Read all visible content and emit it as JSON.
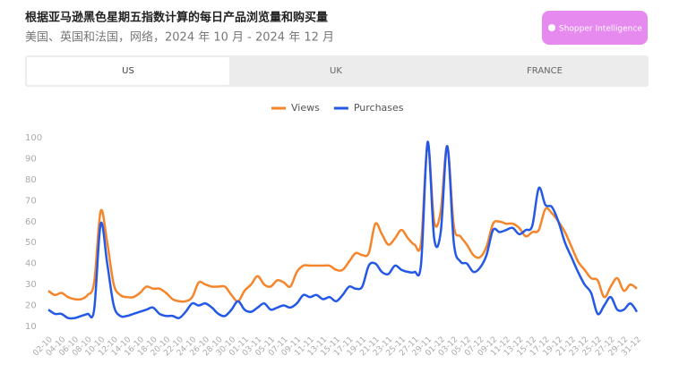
{
  "header": {
    "title": "根据亚马逊黑色星期五指数计算的每日产品浏览量和购买量",
    "subtitle": "美国、英国和法国，网络，2024 年 10 月 - 2024 年 12 月",
    "logo": "Shopper Intelligence"
  },
  "tabs": [
    "US",
    "UK",
    "FRANCE"
  ],
  "chart_data": {
    "type": "line",
    "categories": [
      "02-10",
      null,
      "04-10",
      null,
      "06-10",
      null,
      "08-10",
      null,
      "10-10",
      null,
      "12-10",
      null,
      "14-10",
      null,
      "16-10",
      null,
      "18-10",
      null,
      "20-10",
      null,
      "22-10",
      null,
      "24-10",
      null,
      "26-10",
      null,
      "28-10",
      null,
      "30-10",
      null,
      "01-11",
      null,
      "03-11",
      null,
      "05-11",
      null,
      "07-11",
      null,
      "09-11",
      null,
      "11-11",
      null,
      "13-11",
      null,
      "15-11",
      null,
      "17-11",
      null,
      "19-11",
      null,
      "21-11",
      null,
      "23-11",
      null,
      "25-11",
      null,
      "27-11",
      null,
      "29-11",
      null,
      "01-12",
      null,
      "03-12",
      null,
      "05-12",
      null,
      "07-12",
      null,
      "09-12",
      null,
      "11-12",
      null,
      "13-12",
      null,
      "15-12",
      null,
      "17-12",
      null,
      "19-12",
      null,
      "21-12",
      null,
      "23-12",
      null,
      "25-12",
      null,
      "27-12",
      null,
      "29-12",
      null,
      "31-12"
    ],
    "series": [
      {
        "name": "Views",
        "color": "#f5852a",
        "values": [
          27,
          25,
          26,
          24,
          23,
          23,
          25,
          31,
          65,
          50,
          30,
          25,
          24,
          24,
          26,
          29,
          28,
          28,
          26,
          23,
          22,
          22,
          24,
          31,
          30,
          29,
          29,
          29,
          25,
          22,
          27,
          30,
          34,
          30,
          29,
          32,
          31,
          29,
          36,
          39,
          39,
          39,
          39,
          39,
          37,
          37,
          41,
          45,
          44,
          45,
          59,
          54,
          49,
          52,
          56,
          52,
          49,
          50,
          97,
          60,
          65,
          96,
          58,
          53,
          49,
          44,
          43,
          48,
          59,
          60,
          59,
          59,
          57,
          53,
          55,
          56,
          66,
          64,
          60,
          55,
          48,
          41,
          37,
          33,
          32,
          24,
          29,
          33,
          27,
          30,
          28
        ]
      },
      {
        "name": "Purchases",
        "color": "#2458e6",
        "values": [
          18,
          16,
          16,
          14,
          14,
          15,
          16,
          18,
          59,
          40,
          20,
          15,
          15,
          16,
          17,
          18,
          19,
          16,
          15,
          15,
          14,
          17,
          21,
          20,
          21,
          19,
          16,
          15,
          18,
          22,
          18,
          17,
          19,
          21,
          18,
          19,
          20,
          19,
          21,
          25,
          24,
          25,
          23,
          24,
          22,
          25,
          29,
          28,
          29,
          39,
          40,
          36,
          35,
          39,
          37,
          36,
          36,
          40,
          98,
          52,
          55,
          96,
          50,
          41,
          40,
          36,
          38,
          44,
          56,
          55,
          56,
          57,
          54,
          56,
          58,
          76,
          68,
          67,
          60,
          50,
          43,
          36,
          30,
          26,
          16,
          20,
          24,
          18,
          18,
          21,
          17
        ]
      }
    ],
    "ylim": [
      10,
      100
    ],
    "yticks": [
      10,
      20,
      30,
      40,
      50,
      60,
      70,
      80,
      90,
      100
    ],
    "legend": "top"
  }
}
